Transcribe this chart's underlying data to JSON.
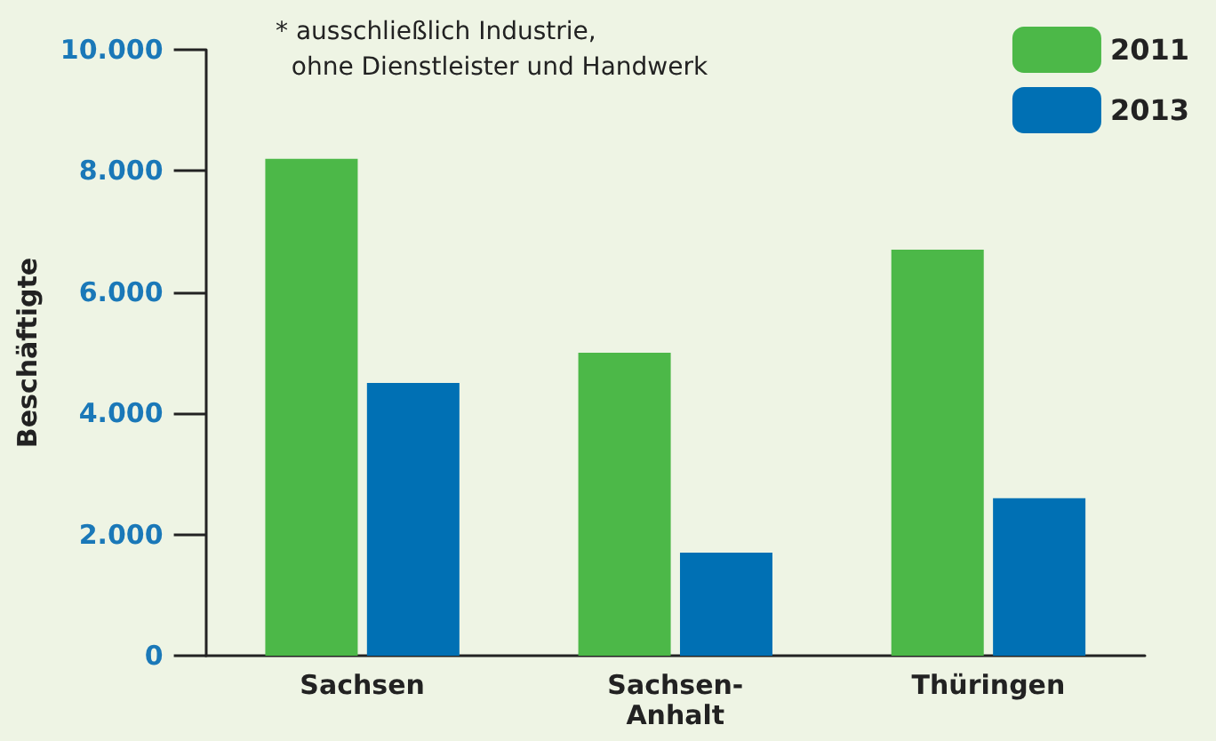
{
  "chart_data": {
    "type": "bar",
    "ylabel": "Beschäftigte",
    "categories": [
      "Sachsen",
      "Sachsen-Anhalt",
      "Thüringen"
    ],
    "series": [
      {
        "name": "2011",
        "color": "#4cb848",
        "values": [
          8200,
          5000,
          6700
        ]
      },
      {
        "name": "2013",
        "color": "#0070b4",
        "values": [
          4500,
          1700,
          2600
        ]
      }
    ],
    "ylim": [
      0,
      10000
    ],
    "yticks": [
      {
        "value": 0,
        "label": "0"
      },
      {
        "value": 2000,
        "label": "2.000"
      },
      {
        "value": 4000,
        "label": "4.000"
      },
      {
        "value": 6000,
        "label": "6.000"
      },
      {
        "value": 8000,
        "label": "8.000"
      },
      {
        "value": 10000,
        "label": "10.000"
      }
    ],
    "annotations": [
      "* ausschließlich Industrie,\n  ohne Dienstleister und Handwerk"
    ],
    "grid": false,
    "legend": "top right"
  }
}
